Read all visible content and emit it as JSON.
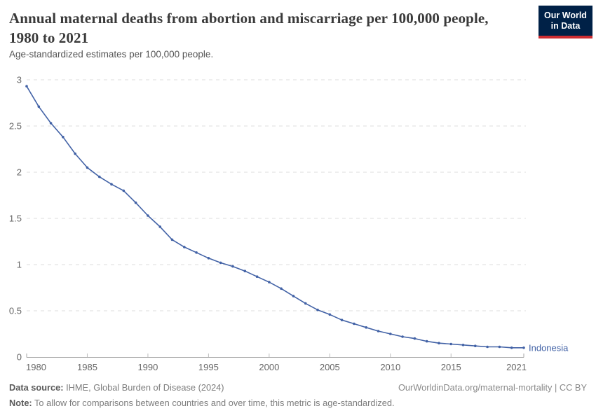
{
  "header": {
    "title": "Annual maternal deaths from abortion and miscarriage per 100,000 people, 1980 to 2021",
    "subtitle": "Age-standardized estimates per 100,000 people.",
    "logo": {
      "line1": "Our World",
      "line2": "in Data",
      "bg_color": "#002147",
      "accent_color": "#cd2d32"
    }
  },
  "chart_data": {
    "type": "line",
    "title": "Annual maternal deaths from abortion and miscarriage per 100,000 people, 1980 to 2021",
    "subtitle": "Age-standardized estimates per 100,000 people.",
    "xlabel": "",
    "ylabel": "",
    "xlim": [
      1980,
      2021
    ],
    "ylim": [
      0,
      3
    ],
    "grid": "horizontal-dashed",
    "legend_position": "end-of-line-label",
    "x": [
      1980,
      1981,
      1982,
      1983,
      1984,
      1985,
      1986,
      1987,
      1988,
      1989,
      1990,
      1991,
      1992,
      1993,
      1994,
      1995,
      1996,
      1997,
      1998,
      1999,
      2000,
      2001,
      2002,
      2003,
      2004,
      2005,
      2006,
      2007,
      2008,
      2009,
      2010,
      2011,
      2012,
      2013,
      2014,
      2015,
      2016,
      2017,
      2018,
      2019,
      2020,
      2021
    ],
    "series": [
      {
        "name": "Indonesia",
        "color": "#4262a6",
        "values": [
          2.93,
          2.71,
          2.53,
          2.38,
          2.2,
          2.05,
          1.95,
          1.87,
          1.8,
          1.67,
          1.53,
          1.41,
          1.27,
          1.19,
          1.13,
          1.07,
          1.02,
          0.98,
          0.93,
          0.87,
          0.81,
          0.74,
          0.66,
          0.58,
          0.51,
          0.46,
          0.4,
          0.36,
          0.32,
          0.28,
          0.25,
          0.22,
          0.2,
          0.17,
          0.15,
          0.14,
          0.13,
          0.12,
          0.11,
          0.11,
          0.1,
          0.1
        ]
      }
    ],
    "x_ticks": [
      "1980",
      "1985",
      "1990",
      "1995",
      "2000",
      "2005",
      "2010",
      "2015",
      "2021"
    ],
    "y_ticks": [
      0,
      0.5,
      1,
      1.5,
      2,
      2.5,
      3
    ],
    "y_tick_labels": [
      "0",
      "0.5",
      "1",
      "1.5",
      "2",
      "2.5",
      "3"
    ]
  },
  "footer": {
    "datasource_label": "Data source:",
    "datasource_value": " IHME, Global Burden of Disease (2024)",
    "url_text": "OurWorldinData.org/maternal-mortality | CC BY",
    "note_label": "Note:",
    "note_value": " To allow for comparisons between countries and over time, this metric is age-standardized."
  }
}
